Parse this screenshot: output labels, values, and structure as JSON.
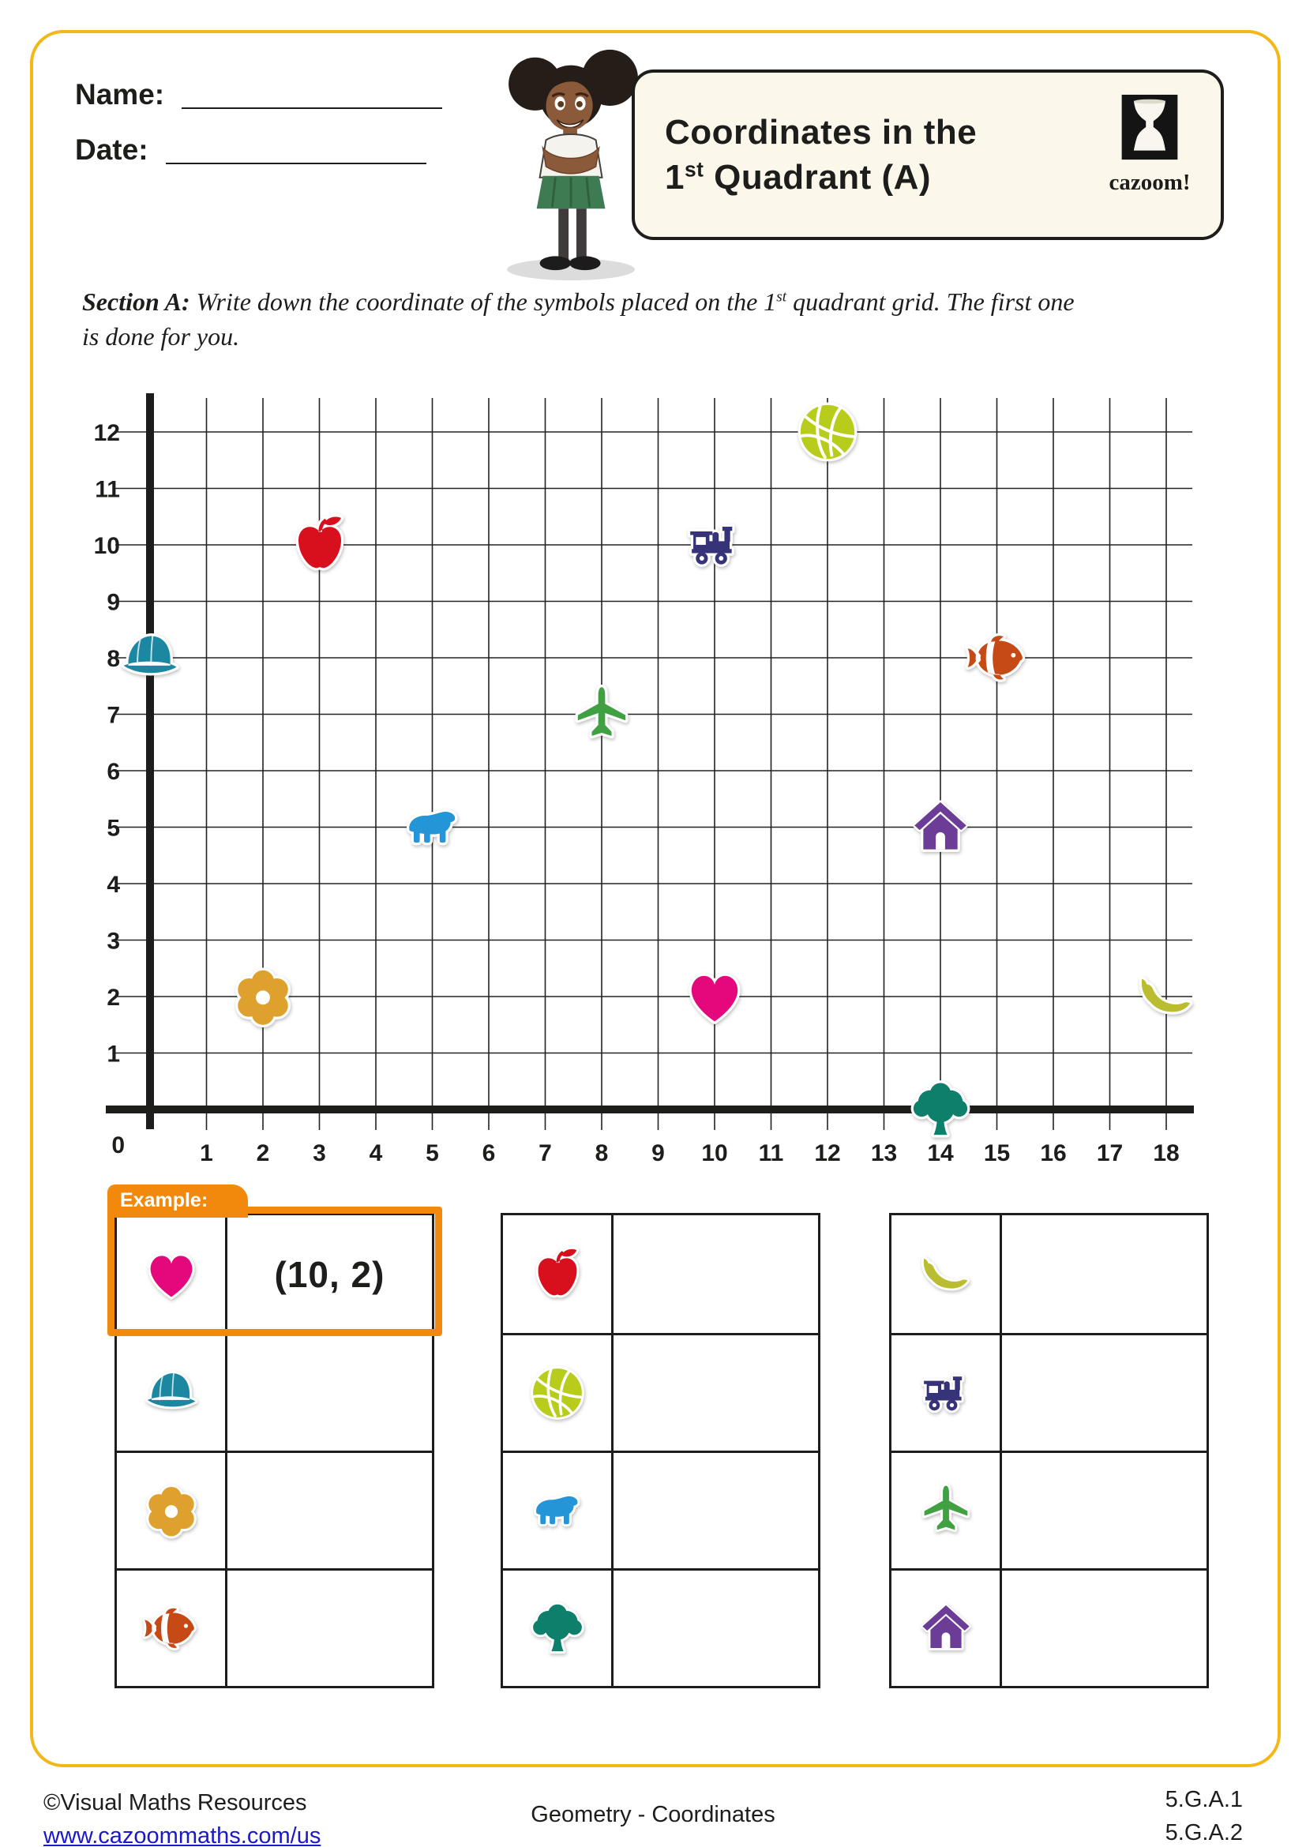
{
  "header": {
    "name_label": "Name:",
    "date_label": "Date:",
    "title_line1": "Coordinates in the",
    "title_line2_pre": "1",
    "title_sup": "st",
    "title_line2_post": " Quadrant (A)",
    "logo_text": "cazoom!"
  },
  "section": {
    "label": "Section A:",
    "t1": "  Write down the coordinate of the symbols placed on the 1",
    "sup": "st",
    "t2a": " quadrant grid. The first one",
    "t2b": "is done for you."
  },
  "grid": {
    "origin_label": "0",
    "x_labels": [
      "1",
      "2",
      "3",
      "4",
      "5",
      "6",
      "7",
      "8",
      "9",
      "10",
      "11",
      "12",
      "13",
      "14",
      "15",
      "16",
      "17",
      "18"
    ],
    "y_labels": [
      "1",
      "2",
      "3",
      "4",
      "5",
      "6",
      "7",
      "8",
      "9",
      "10",
      "11",
      "12"
    ],
    "points": [
      {
        "symbol": "cap",
        "x": 0,
        "y": 8
      },
      {
        "symbol": "apple",
        "x": 3,
        "y": 10
      },
      {
        "symbol": "train",
        "x": 10,
        "y": 10
      },
      {
        "symbol": "basketball",
        "x": 12,
        "y": 12
      },
      {
        "symbol": "fish",
        "x": 15,
        "y": 8
      },
      {
        "symbol": "plane",
        "x": 8,
        "y": 7
      },
      {
        "symbol": "bear",
        "x": 5,
        "y": 5
      },
      {
        "symbol": "house",
        "x": 14,
        "y": 5
      },
      {
        "symbol": "flower",
        "x": 2,
        "y": 2
      },
      {
        "symbol": "heart",
        "x": 10,
        "y": 2
      },
      {
        "symbol": "banana",
        "x": 18,
        "y": 2
      },
      {
        "symbol": "tree",
        "x": 14,
        "y": 0
      }
    ]
  },
  "symbol_colors": {
    "heart": "#E4087C",
    "cap": "#1B87A0",
    "flower": "#DFA12E",
    "fish": "#C64A16",
    "apple": "#D8101E",
    "basketball": "#B8CC1C",
    "bear": "#2496D8",
    "tree": "#0E7F6B",
    "banana": "#B9BD2F",
    "train": "#373379",
    "plane": "#41A142",
    "house": "#6C3D96"
  },
  "example": {
    "tab_label": "Example:",
    "answer": "(10, 2)"
  },
  "tables": [
    {
      "rows": [
        {
          "symbol": "heart",
          "answer": "(10, 2)",
          "example": true
        },
        {
          "symbol": "cap",
          "answer": ""
        },
        {
          "symbol": "flower",
          "answer": ""
        },
        {
          "symbol": "fish",
          "answer": ""
        }
      ]
    },
    {
      "rows": [
        {
          "symbol": "apple",
          "answer": ""
        },
        {
          "symbol": "basketball",
          "answer": ""
        },
        {
          "symbol": "bear",
          "answer": ""
        },
        {
          "symbol": "tree",
          "answer": ""
        }
      ]
    },
    {
      "rows": [
        {
          "symbol": "banana",
          "answer": ""
        },
        {
          "symbol": "train",
          "answer": ""
        },
        {
          "symbol": "plane",
          "answer": ""
        },
        {
          "symbol": "house",
          "answer": ""
        }
      ]
    }
  ],
  "footer": {
    "copyright": "©Visual Maths Resources",
    "url": "www.cazoommaths.com/us",
    "center": "Geometry - Coordinates",
    "std1": "5.G.A.1",
    "std2": "5.G.A.2"
  },
  "colors": {
    "page_border": "#F4B718",
    "accent_orange": "#F2890D",
    "ink": "#1d1d1b",
    "link_blue": "#1A18C8"
  }
}
